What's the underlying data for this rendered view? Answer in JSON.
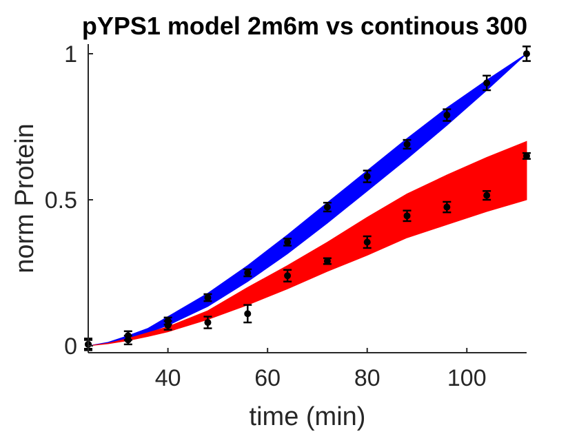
{
  "chart_data": {
    "type": "line",
    "title": "pYPS1 model 2m6m vs continous 300",
    "xlabel": "time (min)",
    "ylabel": "norm Protein",
    "xlim": [
      24,
      112
    ],
    "ylim": [
      0,
      1
    ],
    "x_ticks": [
      40,
      60,
      80,
      100
    ],
    "x_tick_labels": [
      "40",
      "60",
      "80",
      "100"
    ],
    "y_ticks": [
      0,
      0.5,
      1
    ],
    "y_tick_labels": [
      "0",
      "0.5",
      "1"
    ],
    "grid": false,
    "legend": "none",
    "bands": [
      {
        "color": "#0000ff",
        "x": [
          24,
          28,
          32,
          36,
          40,
          48,
          56,
          64,
          72,
          80,
          88,
          96,
          104,
          112
        ],
        "lower": [
          0.0,
          0.01,
          0.025,
          0.045,
          0.07,
          0.135,
          0.22,
          0.315,
          0.42,
          0.53,
          0.64,
          0.755,
          0.875,
          1.0
        ],
        "upper": [
          0.0,
          0.012,
          0.035,
          0.06,
          0.1,
          0.18,
          0.275,
          0.38,
          0.49,
          0.6,
          0.71,
          0.815,
          0.91,
          1.0
        ]
      },
      {
        "color": "#ff0000",
        "x": [
          24,
          28,
          32,
          36,
          40,
          48,
          56,
          64,
          72,
          80,
          88,
          96,
          104,
          112
        ],
        "lower": [
          0.0,
          0.007,
          0.018,
          0.032,
          0.048,
          0.09,
          0.14,
          0.195,
          0.255,
          0.31,
          0.37,
          0.415,
          0.46,
          0.5
        ],
        "upper": [
          0.0,
          0.009,
          0.025,
          0.045,
          0.065,
          0.12,
          0.2,
          0.275,
          0.355,
          0.44,
          0.52,
          0.585,
          0.645,
          0.7
        ]
      }
    ],
    "series": [
      {
        "color": "#000000",
        "x": [
          24,
          32,
          40,
          48,
          56,
          64,
          72,
          80,
          88,
          96,
          104,
          112
        ],
        "values": [
          0.005,
          0.035,
          0.085,
          0.165,
          0.25,
          0.355,
          0.475,
          0.58,
          0.69,
          0.79,
          0.9,
          1.0
        ],
        "errors": [
          0.015,
          0.015,
          0.012,
          0.012,
          0.012,
          0.012,
          0.015,
          0.02,
          0.015,
          0.02,
          0.025,
          0.025
        ]
      },
      {
        "color": "#000000",
        "x": [
          24,
          32,
          40,
          48,
          56,
          64,
          72,
          80,
          88,
          96,
          104,
          112
        ],
        "values": [
          0.005,
          0.02,
          0.07,
          0.08,
          0.11,
          0.24,
          0.29,
          0.355,
          0.445,
          0.475,
          0.515,
          0.65
        ],
        "errors": [
          0.02,
          0.015,
          0.015,
          0.02,
          0.03,
          0.02,
          0.01,
          0.02,
          0.018,
          0.018,
          0.015,
          0.01
        ]
      }
    ]
  }
}
